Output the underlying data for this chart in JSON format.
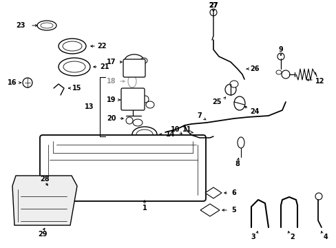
{
  "bg_color": "#ffffff",
  "line_color": "#000000",
  "gray_color": "#999999",
  "fig_width": 4.89,
  "fig_height": 3.6,
  "dpi": 100
}
